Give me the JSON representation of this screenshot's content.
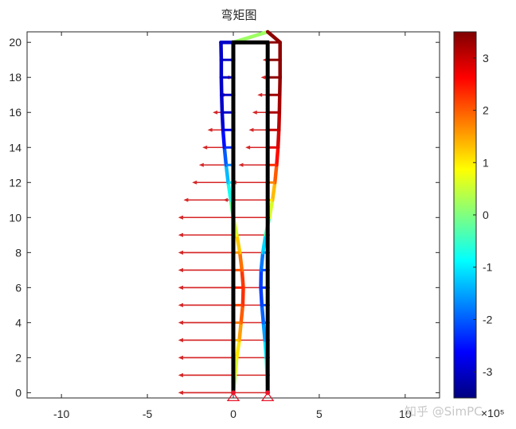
{
  "chart_data": {
    "type": "line",
    "title": "弯矩图",
    "xlim": [
      -12,
      12
    ],
    "ylim": [
      -0.3,
      20.6
    ],
    "x_ticks": [
      -10,
      -5,
      0,
      5,
      10
    ],
    "y_ticks": [
      0,
      2,
      4,
      6,
      8,
      10,
      12,
      14,
      16,
      18,
      20
    ],
    "grid": false,
    "frame": {
      "columns": [
        {
          "x": 0,
          "y": [
            0,
            20
          ]
        },
        {
          "x": 2,
          "y": [
            0,
            20
          ]
        }
      ],
      "beam": {
        "x": [
          0,
          2
        ],
        "y": 20
      },
      "supports_x": [
        0,
        2
      ],
      "node_levels": [
        1,
        2,
        3,
        4,
        5,
        6,
        7,
        8,
        9,
        10,
        11,
        12,
        13,
        14,
        15,
        16,
        17,
        18,
        19
      ]
    },
    "moment_diagram": {
      "left_column": {
        "y": [
          0,
          1,
          2,
          3,
          4,
          5,
          6,
          7,
          8,
          9,
          10,
          11,
          12,
          13,
          14,
          15,
          16,
          17,
          18,
          19,
          20
        ],
        "x": [
          0,
          0.1,
          0.2,
          0.35,
          0.45,
          0.55,
          0.58,
          0.5,
          0.38,
          0.2,
          0,
          -0.15,
          -0.3,
          -0.42,
          -0.52,
          -0.6,
          -0.65,
          -0.68,
          -0.7,
          -0.7,
          -0.72
        ],
        "moment_e5": [
          0.1,
          0.4,
          0.8,
          1.3,
          1.8,
          2.2,
          2.4,
          2.1,
          1.6,
          0.9,
          0.2,
          -0.5,
          -1.0,
          -1.7,
          -2.3,
          -2.8,
          -3.0,
          -3.0,
          -3.0,
          -3.0,
          -3.0
        ]
      },
      "right_column": {
        "y": [
          0,
          1,
          2,
          3,
          4,
          5,
          6,
          7,
          8,
          9,
          10,
          11,
          12,
          13,
          14,
          15,
          16,
          17,
          18,
          19,
          20
        ],
        "x": [
          2,
          1.97,
          1.92,
          1.84,
          1.75,
          1.66,
          1.6,
          1.62,
          1.72,
          1.88,
          2.1,
          2.28,
          2.42,
          2.52,
          2.6,
          2.65,
          2.68,
          2.7,
          2.72,
          2.72,
          2.72
        ],
        "moment_e5": [
          -0.1,
          -0.4,
          -0.8,
          -1.3,
          -1.8,
          -2.1,
          -2.3,
          -2.1,
          -1.5,
          -0.8,
          0.2,
          1.0,
          1.7,
          2.3,
          2.8,
          3.0,
          3.2,
          3.3,
          3.4,
          3.4,
          3.4
        ]
      },
      "beam": {
        "x": [
          -0.72,
          0,
          2,
          2.72
        ],
        "y": [
          20,
          20,
          20.6,
          20
        ],
        "moment_e5": [
          -3.0,
          -3.0,
          3.4,
          3.4
        ]
      }
    },
    "load_arrows": {
      "direction": "left",
      "head_x": -3.2,
      "color": "#d62728",
      "loads": [
        {
          "y": 0,
          "tail": 0
        },
        {
          "y": 1,
          "tail": 0
        },
        {
          "y": 2,
          "tail": 0
        },
        {
          "y": 3,
          "tail": 0
        },
        {
          "y": 4,
          "tail": 0
        },
        {
          "y": 5,
          "tail": 0
        },
        {
          "y": 6,
          "tail": 0
        },
        {
          "y": 7,
          "tail": 0
        },
        {
          "y": 8,
          "tail": 0
        },
        {
          "y": 9,
          "tail": 0
        },
        {
          "y": 10,
          "tail": 0
        },
        {
          "y": 0,
          "tail": 2
        },
        {
          "y": 1,
          "tail": 2
        },
        {
          "y": 2,
          "tail": 2
        },
        {
          "y": 3,
          "tail": 2
        },
        {
          "y": 4,
          "tail": 2
        },
        {
          "y": 5,
          "tail": 2
        },
        {
          "y": 6,
          "tail": 2
        },
        {
          "y": 7,
          "tail": 2
        },
        {
          "y": 8,
          "tail": 2
        },
        {
          "y": 9,
          "tail": 2
        },
        {
          "y": 10,
          "tail": 2
        },
        {
          "y": 11,
          "tail": 0,
          "head": -2.9
        },
        {
          "y": 12,
          "tail": 0,
          "head": -2.4
        },
        {
          "y": 13,
          "tail": 0,
          "head": -2.0
        },
        {
          "y": 14,
          "tail": 0,
          "head": -1.8
        },
        {
          "y": 15,
          "tail": 0,
          "head": -1.5
        },
        {
          "y": 16,
          "tail": 0,
          "head": -1.2
        },
        {
          "y": 17,
          "tail": 0,
          "head": -0.8
        },
        {
          "y": 18,
          "tail": 0,
          "head": -0.5
        },
        {
          "y": 19,
          "tail": 0,
          "head": -0.3
        },
        {
          "y": 11,
          "tail": 2,
          "head": -0.6
        },
        {
          "y": 12,
          "tail": 2,
          "head": -0.1
        },
        {
          "y": 13,
          "tail": 2,
          "head": 0.3
        },
        {
          "y": 14,
          "tail": 2,
          "head": 0.7
        },
        {
          "y": 15,
          "tail": 2,
          "head": 0.9
        },
        {
          "y": 16,
          "tail": 2,
          "head": 1.1
        },
        {
          "y": 17,
          "tail": 2,
          "head": 1.4
        },
        {
          "y": 18,
          "tail": 2,
          "head": 1.6
        },
        {
          "y": 19,
          "tail": 2,
          "head": 1.7
        }
      ]
    },
    "colorbar": {
      "colormap": "jet",
      "range": [
        -3.5,
        3.5
      ],
      "ticks": [
        -3,
        -2,
        -1,
        0,
        1,
        2,
        3
      ],
      "exponent_label": "×10⁵"
    }
  },
  "watermark": "知乎 @SimPC"
}
